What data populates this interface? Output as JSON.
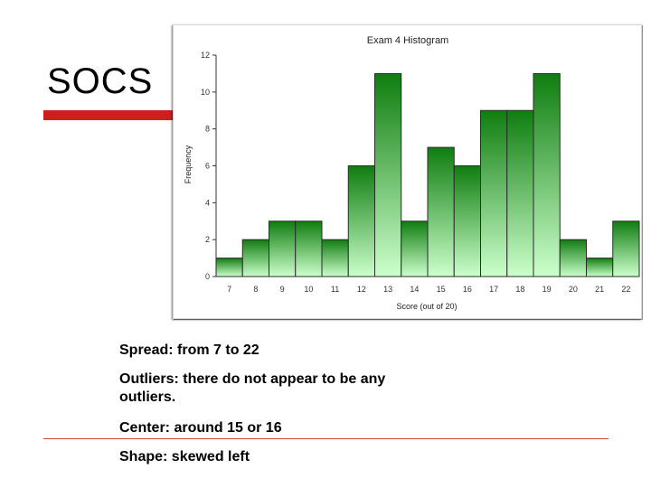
{
  "slide": {
    "title": "SOCS",
    "notes": {
      "spread": "Spread: from 7 to 22",
      "outliers": "Outliers:  there do not appear to be any outliers.",
      "center": "Center:  around 15 or 16",
      "shape": "Shape:  skewed left"
    }
  },
  "colors": {
    "title_underline": "#cc1f1f",
    "bar_top": "#0f7d0f",
    "bar_bottom": "#ccffcc",
    "bottom_rule": "#d24a3a"
  },
  "chart_data": {
    "type": "bar",
    "title": "Exam 4 Histogram",
    "xlabel": "Score (out of 20)",
    "ylabel": "Frequency",
    "categories": [
      "7",
      "8",
      "9",
      "10",
      "11",
      "12",
      "13",
      "14",
      "15",
      "16",
      "17",
      "18",
      "19",
      "20",
      "21",
      "22"
    ],
    "values": [
      1,
      2,
      3,
      3,
      2,
      6,
      11,
      3,
      7,
      6,
      9,
      9,
      11,
      2,
      1,
      3
    ],
    "ylim": [
      0,
      12
    ],
    "yticks": [
      "0",
      "2",
      "4",
      "6",
      "8",
      "10",
      "12"
    ],
    "grid": false,
    "legend": "none"
  }
}
